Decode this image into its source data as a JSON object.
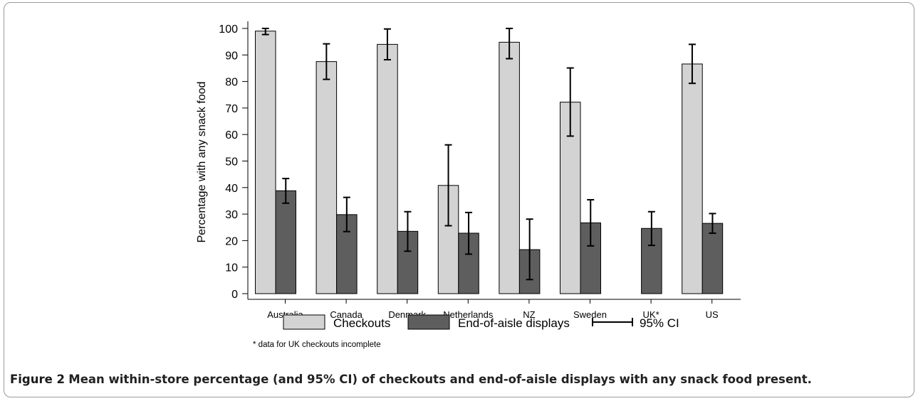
{
  "chart_data": {
    "type": "bar",
    "ylabel": "Percentage with any snack food",
    "xlabel": "",
    "ylim": [
      0,
      100
    ],
    "yticks": [
      0,
      10,
      20,
      30,
      40,
      50,
      60,
      70,
      80,
      90,
      100
    ],
    "categories": [
      "Australia",
      "Canada",
      "Denmark",
      "Netherlands",
      "NZ",
      "Sweden",
      "UK*",
      "US"
    ],
    "series": [
      {
        "name": "Checkouts",
        "color": "#d3d3d3",
        "values": [
          99,
          87.5,
          94,
          40.8,
          94.8,
          72.2,
          null,
          86.6
        ],
        "ci_low": [
          97.7,
          80.8,
          88.2,
          25.6,
          88.6,
          59.4,
          null,
          79.3
        ],
        "ci_high": [
          100,
          94.2,
          99.8,
          56.1,
          100,
          85.1,
          null,
          94
        ]
      },
      {
        "name": "End-of-aisle displays",
        "color": "#5e5e5e",
        "values": [
          38.8,
          29.8,
          23.5,
          22.8,
          16.6,
          26.7,
          24.6,
          26.5
        ],
        "ci_low": [
          34.1,
          23.4,
          16,
          14.9,
          5.3,
          18,
          18.2,
          22.8
        ],
        "ci_high": [
          43.4,
          36.3,
          30.9,
          30.6,
          28.1,
          35.4,
          30.9,
          30.2
        ]
      }
    ],
    "legend": {
      "position": "bottom",
      "items": [
        "Checkouts",
        "End-of-aisle displays",
        "95% CI"
      ]
    },
    "grid": false
  },
  "footnote": "* data for UK checkouts incomplete",
  "caption": {
    "label": "Figure 2",
    "text": "Mean within-store percentage (and 95% CI) of checkouts and end-of-aisle displays with any snack food present."
  }
}
